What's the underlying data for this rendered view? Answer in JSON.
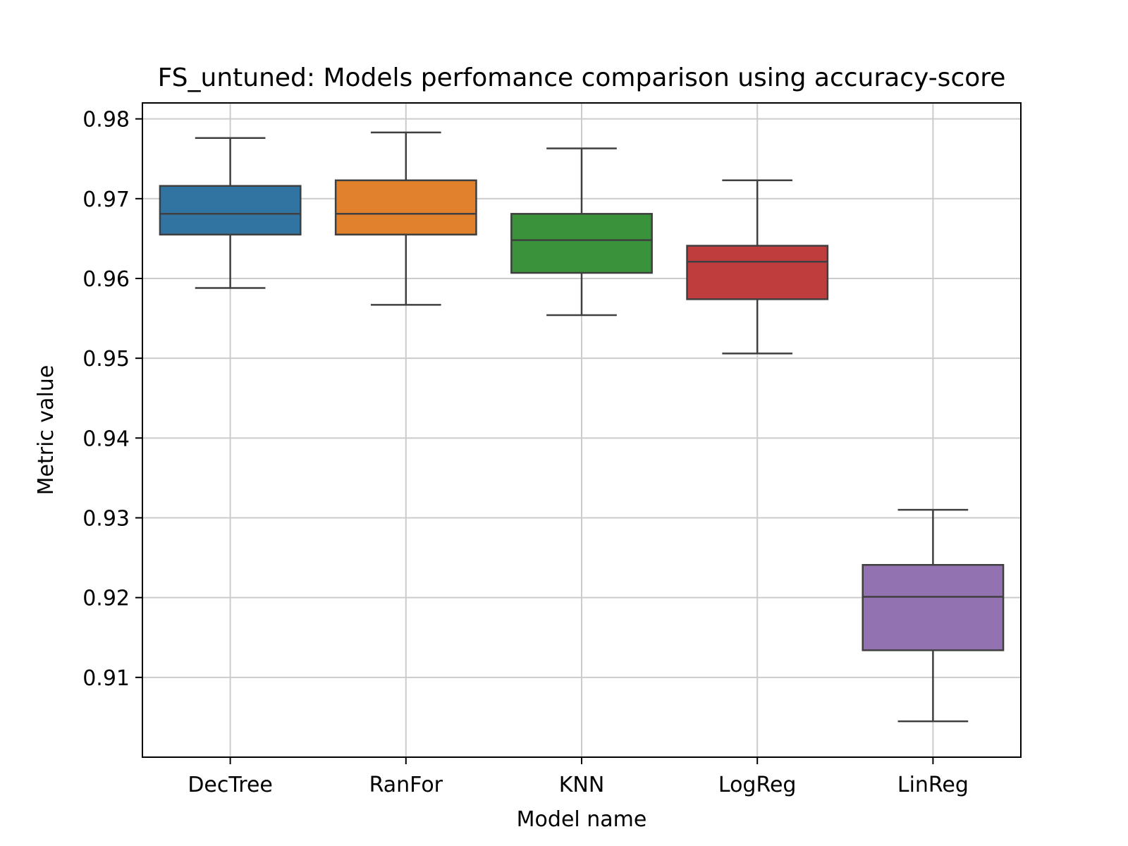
{
  "chart_data": {
    "type": "box",
    "title": "FS_untuned: Models perfomance comparison using accuracy-score",
    "xlabel": "Model name",
    "ylabel": "Metric value",
    "ylim": [
      0.9,
      0.982
    ],
    "yticks": [
      0.91,
      0.92,
      0.93,
      0.94,
      0.95,
      0.96,
      0.97,
      0.98
    ],
    "ytick_labels": [
      "0.91",
      "0.92",
      "0.93",
      "0.94",
      "0.95",
      "0.96",
      "0.97",
      "0.98"
    ],
    "grid": true,
    "categories": [
      "DecTree",
      "RanFor",
      "KNN",
      "LogReg",
      "LinReg"
    ],
    "boxes": [
      {
        "name": "DecTree",
        "whisker_low": 0.9588,
        "q1": 0.9655,
        "median": 0.9681,
        "q3": 0.9716,
        "whisker_high": 0.9776,
        "color": "#3274a1"
      },
      {
        "name": "RanFor",
        "whisker_low": 0.9567,
        "q1": 0.9655,
        "median": 0.9681,
        "q3": 0.9723,
        "whisker_high": 0.9783,
        "color": "#e1812c"
      },
      {
        "name": "KNN",
        "whisker_low": 0.9554,
        "q1": 0.9607,
        "median": 0.9648,
        "q3": 0.9681,
        "whisker_high": 0.9763,
        "color": "#3a923a"
      },
      {
        "name": "LogReg",
        "whisker_low": 0.9506,
        "q1": 0.9574,
        "median": 0.9621,
        "q3": 0.9641,
        "whisker_high": 0.9723,
        "color": "#c03d3e"
      },
      {
        "name": "LinReg",
        "whisker_low": 0.9045,
        "q1": 0.9134,
        "median": 0.9201,
        "q3": 0.9241,
        "whisker_high": 0.931,
        "color": "#9372b2"
      }
    ]
  }
}
